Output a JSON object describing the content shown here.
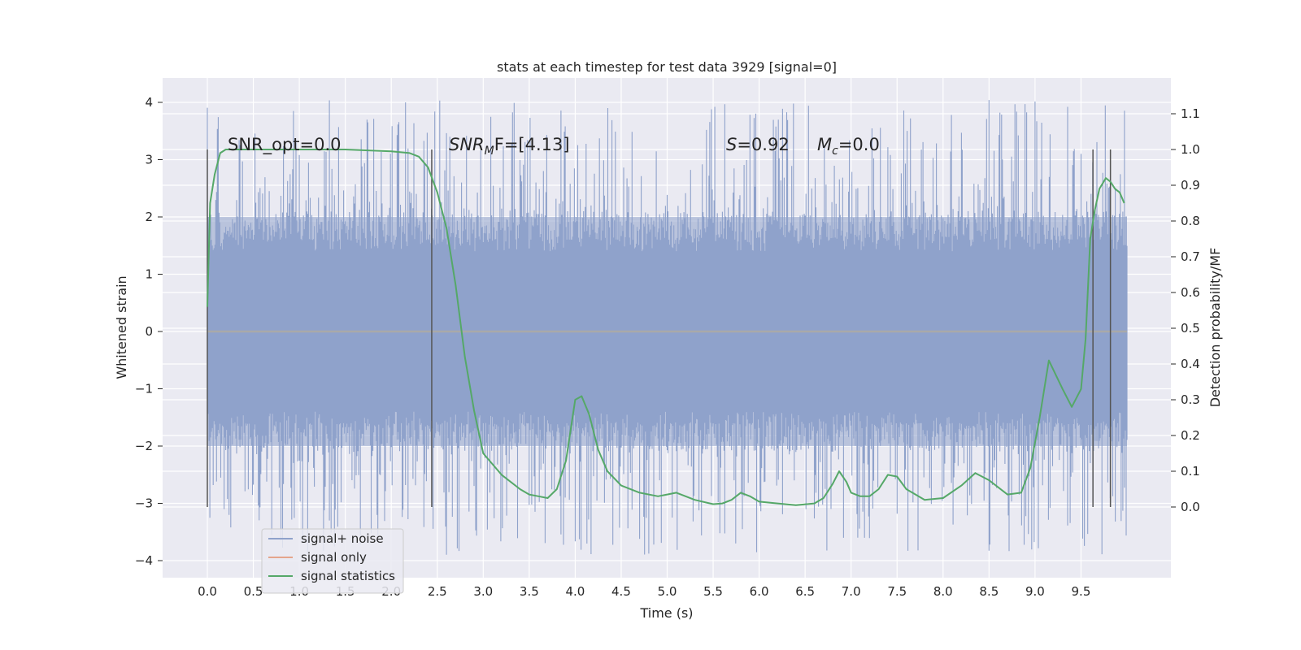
{
  "chart_data": {
    "type": "line",
    "title": "stats at each timestep for test data 3929 [signal=0]",
    "xlabel": "Time (s)",
    "ylabel": "Whitened strain",
    "y2label": "Detection probability/MF",
    "xlim": [
      -0.45,
      10.55
    ],
    "ylim": [
      -4.4,
      4.4
    ],
    "y2lim": [
      -0.155,
      1.185
    ],
    "xticks": [
      "0.0",
      "0.5",
      "1.0",
      "1.5",
      "2.0",
      "2.5",
      "3.0",
      "3.5",
      "4.0",
      "4.5",
      "5.0",
      "5.5",
      "6.0",
      "6.5",
      "7.0",
      "7.5",
      "8.0",
      "8.5",
      "9.0",
      "9.5"
    ],
    "yticks": [
      "4",
      "3",
      "2",
      "1",
      "0",
      "−1",
      "−2",
      "−3",
      "−4"
    ],
    "y2ticks": [
      "1.1",
      "1.0",
      "0.9",
      "0.8",
      "0.7",
      "0.6",
      "0.5",
      "0.4",
      "0.3",
      "0.2",
      "0.1",
      "0.0"
    ],
    "grid": true,
    "legend_position": "lower-left",
    "annotations": {
      "snr_opt": "SNR_opt=0.0",
      "snr_mf_main": "SNR",
      "snr_mf_sub": "M",
      "snr_mf_rest": "F=[4.13]",
      "s_main": "S",
      "s_rest": "=0.92",
      "mc_main": "M",
      "mc_sub": "c",
      "mc_rest": "=0.0"
    },
    "vertical_markers_x": [
      0.0,
      2.44,
      9.63,
      9.82
    ],
    "series": [
      {
        "name": "signal+ noise",
        "color": "#8fa2cb",
        "axis": "left",
        "x_range": [
          0.0,
          10.0
        ],
        "envelope_upper": 2.0,
        "envelope_lower": -2.0,
        "peak_max": 4.05,
        "peak_min": -3.9
      },
      {
        "name": "signal only",
        "color": "#e5a58c",
        "axis": "left",
        "x": [
          0.0,
          10.0
        ],
        "y": [
          0.0,
          0.0
        ]
      },
      {
        "name": "signal statistics",
        "color": "#55a868",
        "axis": "right",
        "x": [
          0.0,
          0.03,
          0.08,
          0.14,
          0.2,
          0.3,
          0.5,
          1.0,
          1.5,
          2.0,
          2.2,
          2.3,
          2.4,
          2.5,
          2.6,
          2.7,
          2.8,
          2.9,
          3.0,
          3.2,
          3.4,
          3.5,
          3.6,
          3.7,
          3.8,
          3.9,
          4.0,
          4.07,
          4.15,
          4.25,
          4.35,
          4.5,
          4.7,
          4.9,
          5.0,
          5.1,
          5.3,
          5.5,
          5.6,
          5.7,
          5.8,
          5.9,
          6.0,
          6.2,
          6.4,
          6.6,
          6.7,
          6.8,
          6.87,
          6.95,
          7.0,
          7.1,
          7.2,
          7.3,
          7.4,
          7.5,
          7.6,
          7.8,
          8.0,
          8.2,
          8.35,
          8.5,
          8.7,
          8.85,
          8.95,
          9.05,
          9.15,
          9.3,
          9.4,
          9.5,
          9.55,
          9.6,
          9.65,
          9.7,
          9.77,
          9.82,
          9.87,
          9.92,
          9.97
        ],
        "y": [
          0.56,
          0.85,
          0.93,
          0.99,
          1.0,
          1.0,
          1.0,
          1.0,
          1.0,
          0.995,
          0.99,
          0.98,
          0.95,
          0.88,
          0.78,
          0.62,
          0.42,
          0.27,
          0.15,
          0.09,
          0.05,
          0.035,
          0.03,
          0.025,
          0.05,
          0.13,
          0.3,
          0.31,
          0.26,
          0.16,
          0.1,
          0.06,
          0.04,
          0.03,
          0.035,
          0.04,
          0.02,
          0.008,
          0.01,
          0.02,
          0.04,
          0.03,
          0.015,
          0.01,
          0.005,
          0.01,
          0.025,
          0.065,
          0.1,
          0.07,
          0.04,
          0.03,
          0.03,
          0.05,
          0.09,
          0.085,
          0.05,
          0.02,
          0.025,
          0.06,
          0.095,
          0.075,
          0.035,
          0.04,
          0.11,
          0.25,
          0.41,
          0.33,
          0.28,
          0.33,
          0.47,
          0.75,
          0.83,
          0.89,
          0.92,
          0.91,
          0.89,
          0.88,
          0.85
        ]
      }
    ]
  }
}
